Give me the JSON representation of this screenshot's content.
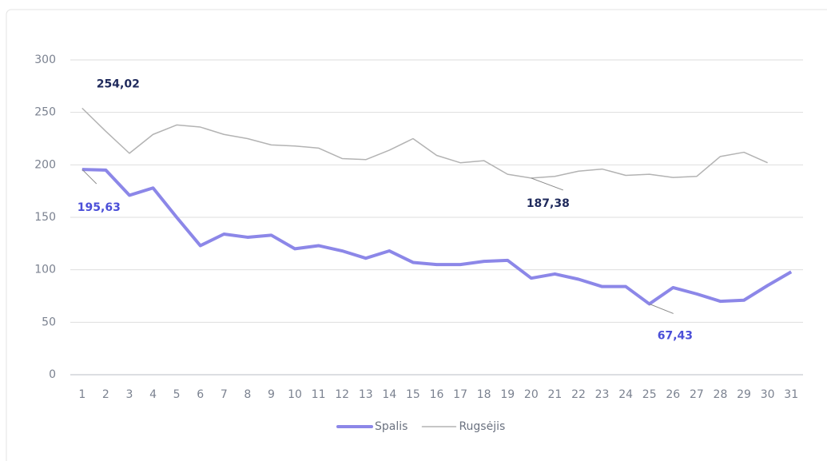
{
  "chart_data": {
    "type": "line",
    "categories": [
      "1",
      "2",
      "3",
      "4",
      "5",
      "6",
      "7",
      "8",
      "9",
      "10",
      "11",
      "12",
      "13",
      "14",
      "15",
      "16",
      "17",
      "18",
      "19",
      "20",
      "21",
      "22",
      "23",
      "24",
      "25",
      "26",
      "27",
      "28",
      "29",
      "30",
      "31"
    ],
    "ylim": [
      0,
      300
    ],
    "yticks": [
      0,
      50,
      100,
      150,
      200,
      250,
      300
    ],
    "grid": true,
    "legend": "bottom",
    "series": [
      {
        "name": "Spalis",
        "color": "#8c87e8",
        "label_color": "#4b4fd8",
        "values": [
          195.63,
          195,
          171,
          178,
          150,
          123,
          134,
          131,
          133,
          120,
          123,
          118,
          111,
          118,
          107,
          105,
          105,
          108,
          109,
          92,
          96,
          91,
          84,
          84,
          67.43,
          83,
          77,
          70,
          71,
          85,
          98
        ],
        "value_labels": [
          "195,63",
          null,
          null,
          null,
          null,
          null,
          null,
          null,
          null,
          null,
          null,
          null,
          null,
          null,
          null,
          null,
          null,
          null,
          null,
          null,
          null,
          null,
          null,
          null,
          "67,43",
          null,
          null,
          null,
          null,
          null,
          null
        ]
      },
      {
        "name": "Rugsėjis",
        "color": "#b3b3b3",
        "label_color": "#1f2a5c",
        "values": [
          254.02,
          232,
          211,
          229,
          238,
          236,
          229,
          225,
          219,
          218,
          216,
          206,
          205,
          214,
          225,
          209,
          202,
          204,
          191,
          187.38,
          189,
          194,
          196,
          190,
          191,
          188,
          189,
          208,
          212,
          202,
          null
        ],
        "value_labels": [
          "254,02",
          null,
          null,
          null,
          null,
          null,
          null,
          null,
          null,
          null,
          null,
          null,
          null,
          null,
          null,
          null,
          null,
          null,
          null,
          "187,38",
          null,
          null,
          null,
          null,
          null,
          null,
          null,
          null,
          null,
          null,
          null
        ]
      }
    ]
  }
}
